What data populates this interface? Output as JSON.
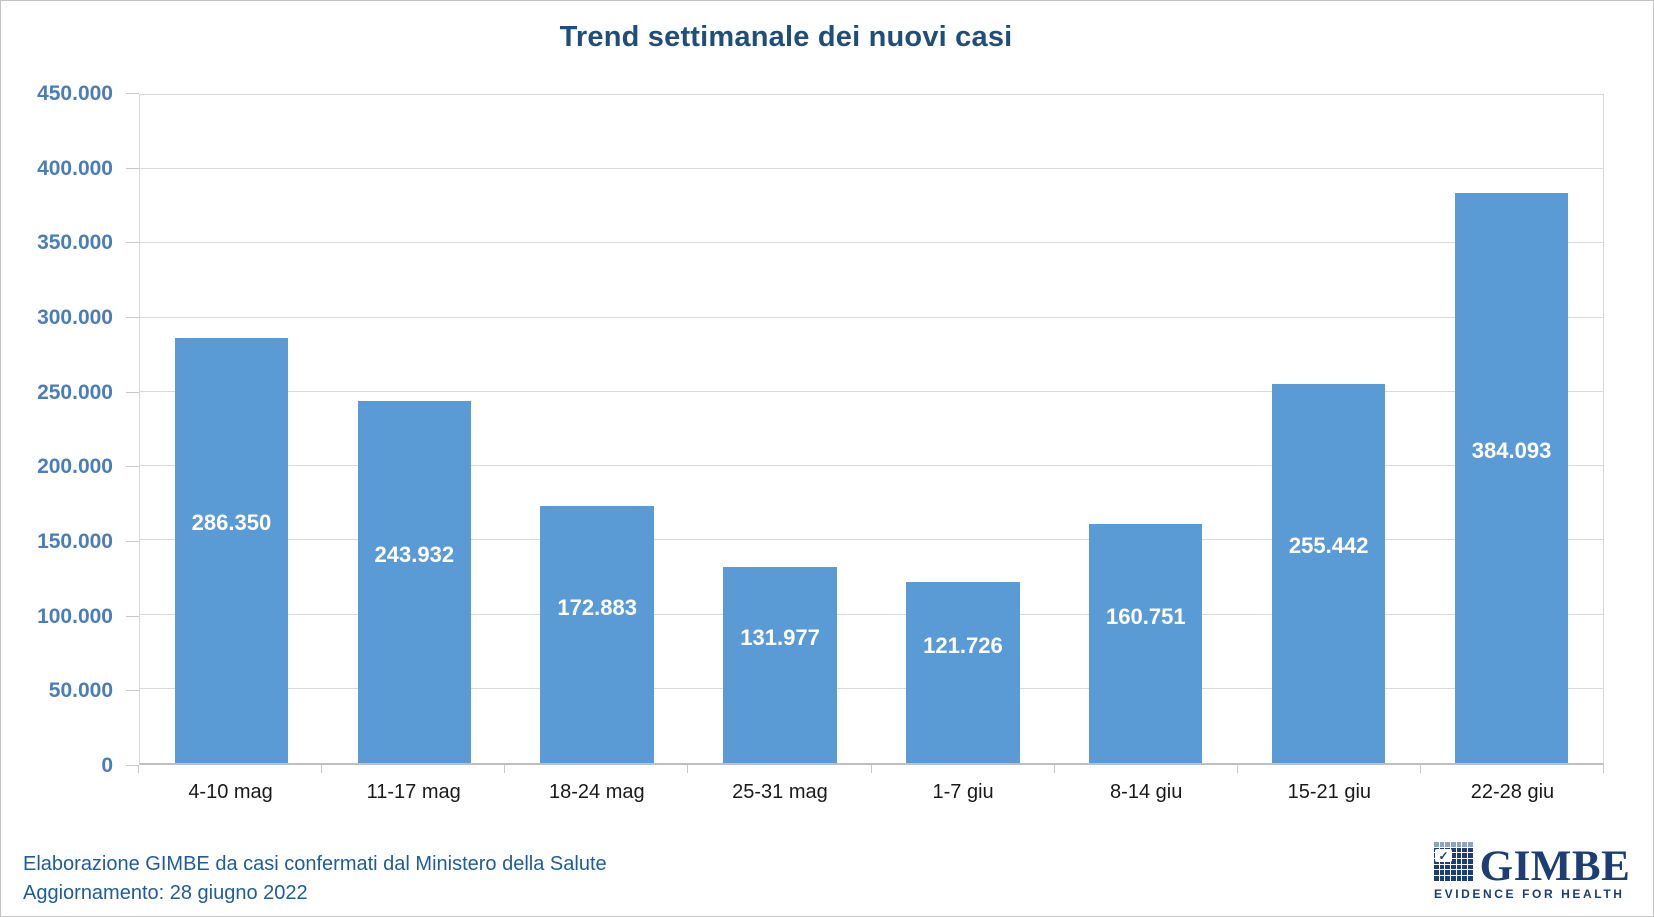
{
  "chart_data": {
    "type": "bar",
    "title": "Trend settimanale dei nuovi casi",
    "categories": [
      "4-10 mag",
      "11-17 mag",
      "18-24 mag",
      "25-31 mag",
      "1-7 giu",
      "8-14 giu",
      "15-21 giu",
      "22-28 giu"
    ],
    "values": [
      286350,
      243932,
      172883,
      131977,
      121726,
      160751,
      255442,
      384093
    ],
    "value_labels": [
      "286.350",
      "243.932",
      "172.883",
      "131.977",
      "121.726",
      "160.751",
      "255.442",
      "384.093"
    ],
    "y_ticks": [
      "450.000",
      "400.000",
      "350.000",
      "300.000",
      "250.000",
      "200.000",
      "150.000",
      "100.000",
      "50.000",
      "0"
    ],
    "ylim": [
      0,
      450000
    ],
    "grid": true,
    "legend": "none",
    "xlabel": "",
    "ylabel": "",
    "bar_color": "#5B9BD5",
    "bar_label_color": "#FFFFFF"
  },
  "footer": {
    "line1": "Elaborazione GIMBE da casi confermati dal Ministero della Salute",
    "line2": "Aggiornamento: 28 giugno 2022"
  },
  "logo": {
    "check_icon": "✓",
    "wordmark": "GIMBE",
    "tagline": "EVIDENCE FOR HEALTH"
  },
  "colors": {
    "title": "#1F4E79",
    "axis_label": "#4A7EBB",
    "gridline": "#D9D9D9",
    "footer_text": "#1F5C99",
    "logo_navy": "#1C3E74"
  }
}
